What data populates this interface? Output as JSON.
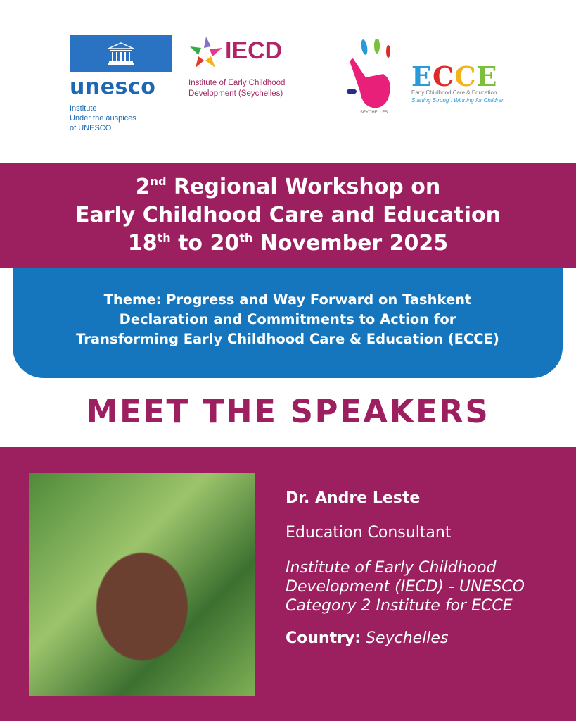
{
  "logos": {
    "unesco": {
      "word": "unesco",
      "sub": [
        "Institute",
        "Under the auspices",
        "of UNESCO"
      ]
    },
    "iecd": {
      "word": "IECD",
      "sub": [
        "Institute of Early Childhood",
        "Development (Seychelles)"
      ]
    },
    "ecce": {
      "letters": [
        "E",
        "C",
        "C",
        "E"
      ],
      "letter_colors": [
        "#2a9ad8",
        "#e02a2a",
        "#f2b21a",
        "#7cbf3a"
      ],
      "hand_text": "SEYCHELLES",
      "sub": "Early Childhood Care & Education",
      "tagline": "Starting Strong : Winning for Children"
    }
  },
  "event": {
    "line1_num": "2",
    "line1_sup": "nd",
    "line1_rest": " Regional Workshop on",
    "line2": "Early Childhood Care and Education",
    "line3_a": "18",
    "line3_a_sup": "th",
    "line3_b": " to 20",
    "line3_b_sup": "th",
    "line3_c": " November 2025"
  },
  "theme": [
    "Theme: Progress and Way Forward on Tashkent",
    "Declaration and Commitments to Action for",
    "Transforming Early Childhood Care & Education (ECCE)"
  ],
  "heading": "MEET THE SPEAKERS",
  "speaker": {
    "name": "Dr. Andre Leste",
    "role": "Education Consultant",
    "organization": "Institute of Early Childhood Development (IECD) - UNESCO Category 2 Institute for ECCE",
    "country_label": "Country:",
    "country": "Seychelles"
  },
  "colors": {
    "magenta": "#9c1f5f",
    "blue": "#1576bd",
    "unesco_blue": "#2a73c2"
  }
}
